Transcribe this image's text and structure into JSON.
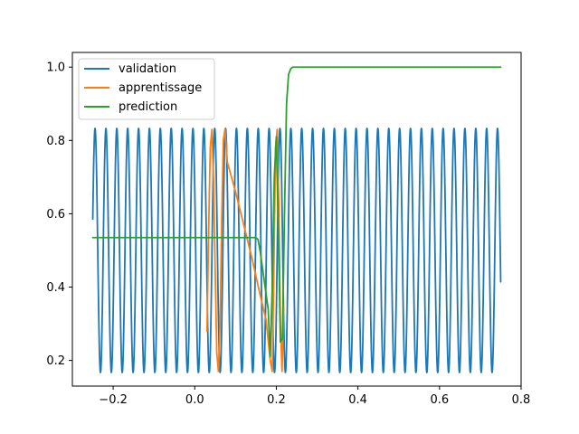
{
  "chart_data": {
    "type": "line",
    "title": "",
    "xlabel": "",
    "ylabel": "",
    "xlim": [
      -0.3,
      0.8
    ],
    "ylim": [
      0.13,
      1.04
    ],
    "grid": false,
    "legend_placement": "top-left",
    "x_ticks": [
      -0.2,
      0.0,
      0.2,
      0.4,
      0.6,
      0.8
    ],
    "x_tick_labels": [
      "−0.2",
      "0.0",
      "0.2",
      "0.4",
      "0.6",
      "0.8"
    ],
    "y_ticks": [
      0.2,
      0.4,
      0.6,
      0.8,
      1.0
    ],
    "y_tick_labels": [
      "0.2",
      "0.4",
      "0.6",
      "0.8",
      "1.0"
    ],
    "series": [
      {
        "name": "validation",
        "color": "#1f77b4",
        "kind": "sinusoid",
        "x_range": [
          -0.25,
          0.75
        ],
        "center": 0.5,
        "amplitude": 0.333,
        "cycles_per_unit": 37.5,
        "phase": 0.26
      },
      {
        "name": "apprentissage",
        "color": "#ff7f0e",
        "x": [
          0.03,
          0.034,
          0.038,
          0.042,
          0.046,
          0.05,
          0.054,
          0.058,
          0.062,
          0.066,
          0.07,
          0.074,
          0.08,
          0.1,
          0.12,
          0.14,
          0.16,
          0.175,
          0.185,
          0.19,
          0.194,
          0.198,
          0.202,
          0.206,
          0.21,
          0.214,
          0.218
        ],
        "y": [
          0.28,
          0.55,
          0.78,
          0.83,
          0.7,
          0.45,
          0.22,
          0.17,
          0.3,
          0.58,
          0.8,
          0.83,
          0.74,
          0.66,
          0.57,
          0.48,
          0.38,
          0.31,
          0.2,
          0.17,
          0.45,
          0.78,
          0.83,
          0.62,
          0.3,
          0.17,
          0.35
        ]
      },
      {
        "name": "prediction",
        "color": "#2ca02c",
        "x": [
          -0.25,
          0.0,
          0.1,
          0.15,
          0.155,
          0.16,
          0.165,
          0.17,
          0.175,
          0.18,
          0.185,
          0.19,
          0.195,
          0.2,
          0.205,
          0.21,
          0.215,
          0.22,
          0.225,
          0.23,
          0.235,
          0.24,
          0.25,
          0.3,
          0.5,
          0.75
        ],
        "y": [
          0.535,
          0.535,
          0.535,
          0.535,
          0.53,
          0.5,
          0.46,
          0.42,
          0.38,
          0.34,
          0.21,
          0.4,
          0.7,
          0.81,
          0.55,
          0.25,
          0.26,
          0.6,
          0.9,
          0.98,
          0.995,
          1.0,
          1.0,
          1.0,
          1.0,
          1.0
        ]
      }
    ]
  }
}
